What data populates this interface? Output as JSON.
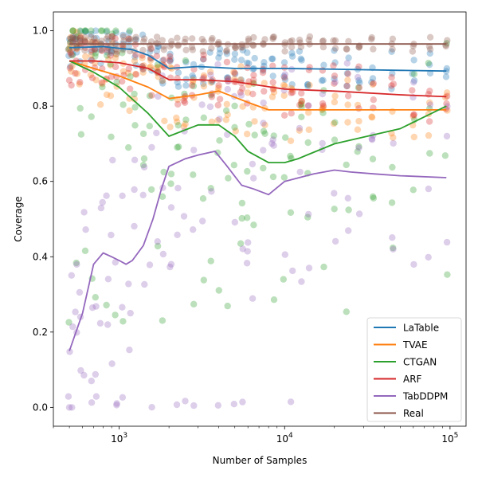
{
  "chart_data": {
    "type": "line",
    "title": "",
    "xlabel": "Number of Samples",
    "ylabel": "Coverage",
    "xscale": "log",
    "xlim": [
      400,
      125000
    ],
    "ylim": [
      -0.05,
      1.05
    ],
    "x_ticks": [
      {
        "value": 1000,
        "base": "10",
        "exp": "3"
      },
      {
        "value": 10000,
        "base": "10",
        "exp": "4"
      },
      {
        "value": 100000,
        "base": "10",
        "exp": "5"
      }
    ],
    "y_ticks": [
      {
        "value": 0.0,
        "label": "0.0"
      },
      {
        "value": 0.2,
        "label": "0.2"
      },
      {
        "value": 0.4,
        "label": "0.4"
      },
      {
        "value": 0.6,
        "label": "0.6"
      },
      {
        "value": 0.8,
        "label": "0.8"
      },
      {
        "value": 1.0,
        "label": "1.0"
      }
    ],
    "legend_position": "bottom-right",
    "series": [
      {
        "name": "LaTable",
        "color": "#1f77b4",
        "x": [
          500,
          800,
          1200,
          1500,
          2000,
          3000,
          5000,
          10000,
          20000,
          50000,
          95000
        ],
        "y": [
          0.955,
          0.958,
          0.95,
          0.935,
          0.9,
          0.905,
          0.9,
          0.9,
          0.898,
          0.895,
          0.893
        ]
      },
      {
        "name": "TVAE",
        "color": "#ff7f0e",
        "x": [
          500,
          700,
          1000,
          1500,
          2000,
          3000,
          4000,
          6000,
          8000,
          12000,
          20000,
          50000,
          95000
        ],
        "y": [
          0.92,
          0.9,
          0.88,
          0.85,
          0.82,
          0.83,
          0.84,
          0.81,
          0.79,
          0.79,
          0.79,
          0.79,
          0.79
        ]
      },
      {
        "name": "CTGAN",
        "color": "#2ca02c",
        "x": [
          500,
          700,
          1000,
          1500,
          2000,
          3000,
          4000,
          5000,
          6000,
          8000,
          10000,
          12000,
          20000,
          50000,
          95000
        ],
        "y": [
          0.92,
          0.89,
          0.85,
          0.78,
          0.72,
          0.75,
          0.75,
          0.72,
          0.68,
          0.65,
          0.65,
          0.66,
          0.7,
          0.74,
          0.8
        ]
      },
      {
        "name": "ARF",
        "color": "#d62728",
        "x": [
          500,
          700,
          1000,
          1500,
          2000,
          3000,
          5000,
          10000,
          20000,
          50000,
          95000
        ],
        "y": [
          0.92,
          0.92,
          0.915,
          0.9,
          0.87,
          0.87,
          0.865,
          0.845,
          0.84,
          0.83,
          0.825
        ]
      },
      {
        "name": "TabDDPM",
        "color": "#9467bd",
        "x": [
          500,
          600,
          700,
          800,
          900,
          1000,
          1100,
          1200,
          1400,
          1600,
          1800,
          2000,
          2500,
          3000,
          3800,
          4500,
          5500,
          6500,
          8000,
          10000,
          15000,
          20000,
          25000,
          35000,
          50000,
          95000
        ],
        "y": [
          0.15,
          0.25,
          0.38,
          0.41,
          0.4,
          0.39,
          0.38,
          0.39,
          0.43,
          0.5,
          0.58,
          0.64,
          0.66,
          0.67,
          0.68,
          0.64,
          0.59,
          0.58,
          0.565,
          0.6,
          0.62,
          0.63,
          0.625,
          0.62,
          0.615,
          0.61
        ]
      },
      {
        "name": "Real",
        "color": "#8c564b",
        "x": [
          500,
          1000,
          2000,
          5000,
          10000,
          20000,
          50000,
          95000
        ],
        "y": [
          0.965,
          0.965,
          0.965,
          0.965,
          0.965,
          0.965,
          0.965,
          0.965
        ]
      }
    ],
    "scatter_note": "Faded per-run scatter points around each series line"
  }
}
